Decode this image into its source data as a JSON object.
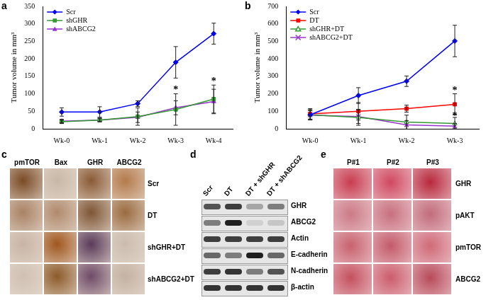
{
  "chart_data": [
    {
      "label": "a",
      "type": "line",
      "ylabel": "Tumor volume in mm³",
      "categories": [
        "Wk-0",
        "Wk-1",
        "Wk-2",
        "Wk-3",
        "Wk-4"
      ],
      "ylim": [
        0,
        350
      ],
      "yticks": [
        0,
        50,
        100,
        150,
        200,
        250,
        300,
        350
      ],
      "grid": false,
      "legend": "upper left",
      "series": [
        {
          "name": "Scr",
          "color": "#0000ff",
          "marker": "diamond",
          "values": [
            48,
            48,
            72,
            190,
            272
          ],
          "error": [
            12,
            15,
            8,
            45,
            30
          ]
        },
        {
          "name": "shGHR",
          "color": "#339933",
          "marker": "square",
          "values": [
            20,
            25,
            35,
            55,
            85
          ],
          "error": [
            5,
            5,
            25,
            45,
            40
          ]
        },
        {
          "name": "shABCG2",
          "color": "#9933cc",
          "marker": "triangle",
          "values": [
            22,
            25,
            33,
            60,
            78
          ],
          "error": [
            5,
            5,
            15,
            20,
            35
          ]
        }
      ],
      "annotations": [
        {
          "text": "*",
          "x": "Wk-3",
          "y": 110
        },
        {
          "text": "*",
          "x": "Wk-4",
          "y": 135
        }
      ]
    },
    {
      "label": "b",
      "type": "line",
      "ylabel": "Tumor volume in mm³",
      "categories": [
        "Wk-0",
        "Wk-1",
        "Wk-2",
        "Wk-3"
      ],
      "ylim": [
        0,
        700
      ],
      "yticks": [
        0,
        100,
        200,
        300,
        400,
        500,
        600,
        700
      ],
      "grid": false,
      "legend": "upper left",
      "series": [
        {
          "name": "Scr",
          "color": "#0000ff",
          "marker": "diamond",
          "values": [
            80,
            190,
            272,
            502
          ],
          "error": [
            25,
            45,
            30,
            90
          ]
        },
        {
          "name": "DT",
          "color": "#ff0000",
          "marker": "square",
          "values": [
            85,
            100,
            115,
            140
          ],
          "error": [
            30,
            50,
            20,
            60
          ]
        },
        {
          "name": "shGHR+DT",
          "color": "#339933",
          "marker": "open_triangle",
          "values": [
            80,
            65,
            38,
            30
          ],
          "error": [
            30,
            45,
            40,
            35
          ]
        },
        {
          "name": "shABCG2+DT",
          "color": "#9933cc",
          "marker": "x",
          "values": [
            78,
            70,
            22,
            15
          ],
          "error": [
            25,
            40,
            25,
            15
          ]
        }
      ],
      "annotations": [
        {
          "text": "*",
          "x": "Wk-3",
          "y": 215
        },
        {
          "text": "*",
          "x": "Wk-3",
          "y": 70
        }
      ]
    }
  ],
  "panels": [
    {
      "label": "c",
      "columns": [
        "pmTOR",
        "Bax",
        "GHR",
        "ABCG2"
      ],
      "rows": [
        "Scr",
        "DT",
        "shGHR+DT",
        "shABCG2+DT"
      ]
    },
    {
      "label": "d",
      "lanes": [
        "Scr",
        "DT",
        "DT + shGHR",
        "DT + shABCG2"
      ],
      "bands": [
        "GHR",
        "ABCG2",
        "Actin",
        "E-cadherin",
        "N-cadherin",
        "β-actin"
      ]
    },
    {
      "label": "e",
      "columns": [
        "P#1",
        "P#2",
        "P#3"
      ],
      "rows": [
        "GHR",
        "pAKT",
        "pmTOR",
        "ABCG2"
      ]
    }
  ]
}
